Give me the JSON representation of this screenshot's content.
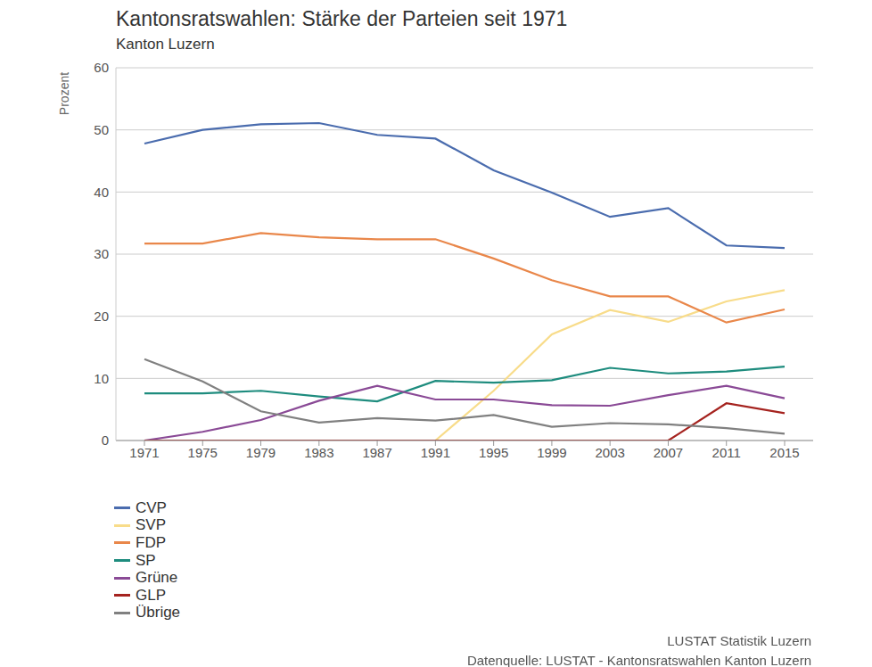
{
  "chart_data": {
    "type": "line",
    "title": "Kantonsratswahlen: Stärke der Parteien seit 1971",
    "subtitle": "Kanton Luzern",
    "y_label": "Prozent",
    "source": [
      "LUSTAT Statistik Luzern",
      "Datenquelle: LUSTAT - Kantonsratswahlen Kanton Luzern"
    ],
    "categories": [
      "1971",
      "1975",
      "1979",
      "1983",
      "1987",
      "1991",
      "1995",
      "1999",
      "2003",
      "2007",
      "2011",
      "2015"
    ],
    "series": [
      {
        "name": "CVP",
        "color": "#4a6cae",
        "values": [
          47.8,
          50.0,
          50.9,
          51.1,
          49.2,
          48.6,
          43.5,
          39.9,
          36.0,
          37.4,
          31.4,
          31.0
        ]
      },
      {
        "name": "SVP",
        "color": "#f8dc8a",
        "values": [
          0,
          0,
          0,
          0,
          0,
          0,
          8.0,
          17.1,
          21.0,
          19.1,
          22.4,
          24.2
        ]
      },
      {
        "name": "FDP",
        "color": "#e9874a",
        "values": [
          31.7,
          31.7,
          33.4,
          32.7,
          32.4,
          32.4,
          29.3,
          25.8,
          23.2,
          23.2,
          19.0,
          21.1
        ]
      },
      {
        "name": "SP",
        "color": "#1e8c7e",
        "values": [
          7.6,
          7.6,
          8.0,
          7.1,
          6.3,
          9.6,
          9.3,
          9.7,
          11.7,
          10.8,
          11.1,
          11.9
        ]
      },
      {
        "name": "Grüne",
        "color": "#8a4a96",
        "values": [
          0,
          1.4,
          3.3,
          6.4,
          8.8,
          6.6,
          6.6,
          5.7,
          5.6,
          7.3,
          8.8,
          6.8
        ]
      },
      {
        "name": "GLP",
        "color": "#a5231f",
        "values": [
          0,
          0,
          0,
          0,
          0,
          0,
          0,
          0,
          0,
          0,
          6.0,
          4.4
        ]
      },
      {
        "name": "Übrige",
        "color": "#808080",
        "values": [
          13.1,
          9.5,
          4.7,
          2.9,
          3.6,
          3.2,
          4.1,
          2.2,
          2.8,
          2.6,
          2.0,
          1.1
        ]
      }
    ],
    "ylim": [
      0,
      60
    ],
    "yticks": [
      0,
      10,
      20,
      30,
      40,
      50,
      60
    ],
    "grid": true,
    "legend": "bottom-left"
  }
}
